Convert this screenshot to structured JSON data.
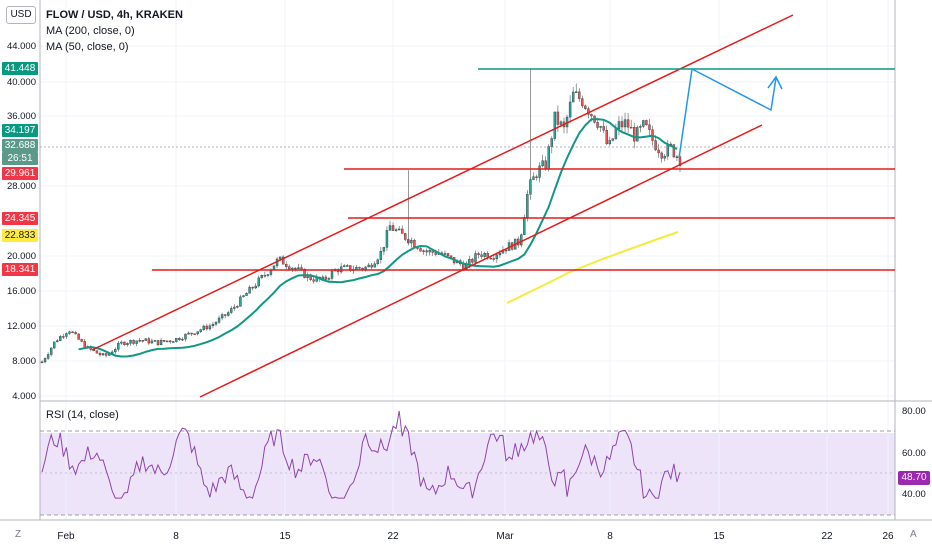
{
  "header": {
    "title": "FLOW / USD, 4h, KRAKEN",
    "ma200": "MA (200, close, 0)",
    "ma50": "MA (50, close, 0)",
    "currency": "USD"
  },
  "rsi": {
    "label": "RSI (14, close)",
    "value": "48.70",
    "ticks": [
      "80.00",
      "60.00",
      "40.00"
    ]
  },
  "price_axis_ticks": [
    "44.000",
    "40.000",
    "36.000",
    "28.000",
    "20.000",
    "16.000",
    "12.000",
    "8.000",
    "4.000"
  ],
  "price_labels": [
    {
      "text": "41.448",
      "color": "#089981"
    },
    {
      "text": "34.197",
      "color": "#089981"
    },
    {
      "text": "32.688",
      "color": "#5b9a8b"
    },
    {
      "text": "26:51",
      "color": "#5b9a8b"
    },
    {
      "text": "29.961",
      "color": "#f23645"
    },
    {
      "text": "24.345",
      "color": "#f23645"
    },
    {
      "text": "22.833",
      "color": "#ffeb3b"
    },
    {
      "text": "18.341",
      "color": "#f23645"
    }
  ],
  "time_axis_ticks": [
    "Feb",
    "8",
    "15",
    "22",
    "Mar",
    "8",
    "15",
    "22",
    "26"
  ],
  "axis_buttons": {
    "zoom": "Z",
    "auto": "A"
  },
  "colors": {
    "channel": "#e31b1b",
    "resistance": "#089981",
    "ma50": "#129686",
    "ma200": "#f4ec3a",
    "projection": "#2196f3",
    "up_candle": "#26a69a",
    "down_candle": "#ef5350",
    "rsi_line": "#8e44ad",
    "rsi_band": "#ede4fa"
  },
  "chart_data": {
    "type": "candlestick",
    "symbol": "FLOW / USD",
    "interval": "4h",
    "exchange": "KRAKEN",
    "ylim": [
      4,
      48
    ],
    "price_polyline": [
      [
        0,
        7.9
      ],
      [
        0.03,
        10.3
      ],
      [
        0.06,
        11.6
      ],
      [
        0.1,
        9.5
      ],
      [
        0.14,
        8.5
      ],
      [
        0.18,
        10.1
      ],
      [
        0.22,
        10.4
      ],
      [
        0.26,
        10.1
      ],
      [
        0.3,
        10.5
      ],
      [
        0.34,
        11.3
      ],
      [
        0.38,
        12.1
      ],
      [
        0.42,
        13.6
      ],
      [
        0.46,
        15.8
      ],
      [
        0.5,
        17.9
      ],
      [
        0.53,
        19.6
      ],
      [
        0.56,
        18.8
      ],
      [
        0.6,
        17.5
      ],
      [
        0.63,
        17.2
      ],
      [
        0.66,
        18.5
      ],
      [
        0.7,
        18.6
      ],
      [
        0.73,
        18.7
      ],
      [
        0.76,
        20.4
      ],
      [
        0.78,
        23.4
      ],
      [
        0.8,
        22.6
      ],
      [
        0.83,
        21.7
      ],
      [
        0.86,
        20.5
      ],
      [
        0.89,
        20.4
      ],
      [
        0.92,
        19.5
      ],
      [
        0.95,
        18.8
      ],
      [
        0.98,
        20.3
      ],
      [
        1.01,
        20.1
      ],
      [
        1.04,
        21.0
      ],
      [
        1.07,
        21.6
      ],
      [
        1.09,
        27.6
      ],
      [
        1.11,
        29.7
      ],
      [
        1.13,
        30.5
      ],
      [
        1.15,
        35.8
      ],
      [
        1.17,
        34.4
      ],
      [
        1.19,
        38.4
      ],
      [
        1.21,
        37.9
      ],
      [
        1.23,
        36.4
      ],
      [
        1.25,
        35.1
      ],
      [
        1.27,
        32.2
      ],
      [
        1.29,
        34.8
      ],
      [
        1.31,
        35.2
      ],
      [
        1.33,
        33.6
      ],
      [
        1.35,
        34.9
      ],
      [
        1.37,
        33.1
      ],
      [
        1.39,
        31.9
      ],
      [
        1.41,
        32.3
      ],
      [
        1.43,
        31.1
      ]
    ],
    "horizontal_levels": [
      41.448,
      29.961,
      24.345,
      18.341
    ],
    "ma_values": {
      "ma50_last": 34.197,
      "ma200_last": 22.833
    },
    "last_price": 32.688,
    "rsi_last": 48.7
  }
}
